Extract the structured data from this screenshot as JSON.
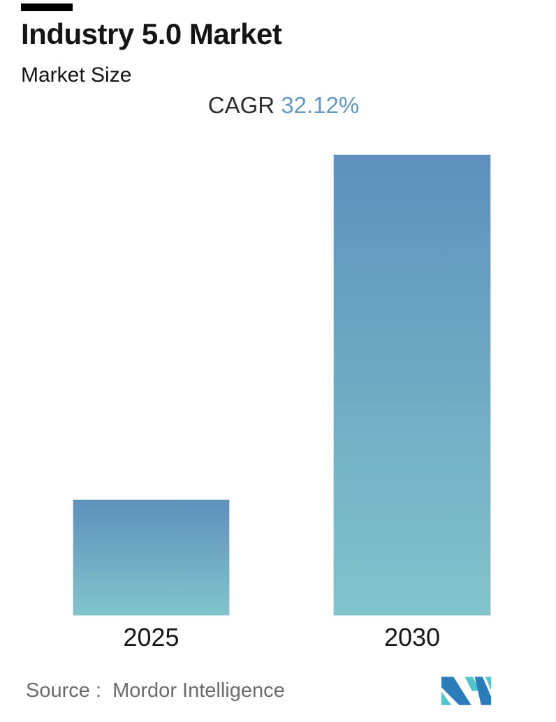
{
  "header": {
    "title": "Industry 5.0 Market",
    "subtitle": "Market Size",
    "cagr_label": "CAGR ",
    "cagr_value": "32.12%"
  },
  "chart_data": {
    "type": "bar",
    "title": "Industry 5.0 Market",
    "subtitle": "Market Size",
    "cagr": "32.12%",
    "categories": [
      "2025",
      "2030"
    ],
    "values_relative_height": [
      0.2527,
      1.0
    ],
    "value_labels_shown": false,
    "y_axis_shown": false,
    "grid": false,
    "legend_position": "none",
    "colors": {
      "bar_gradient_top": "#5d91bc",
      "bar_gradient_bottom": "#82c4cc",
      "cagr_value_text": "#6397c4"
    }
  },
  "footer": {
    "source_text": "Source :  Mordor Intelligence",
    "logo_name": "mordor-intelligence-logo",
    "logo_colors": {
      "blue": "#2b7cba",
      "teal": "#4fc6cd"
    }
  }
}
